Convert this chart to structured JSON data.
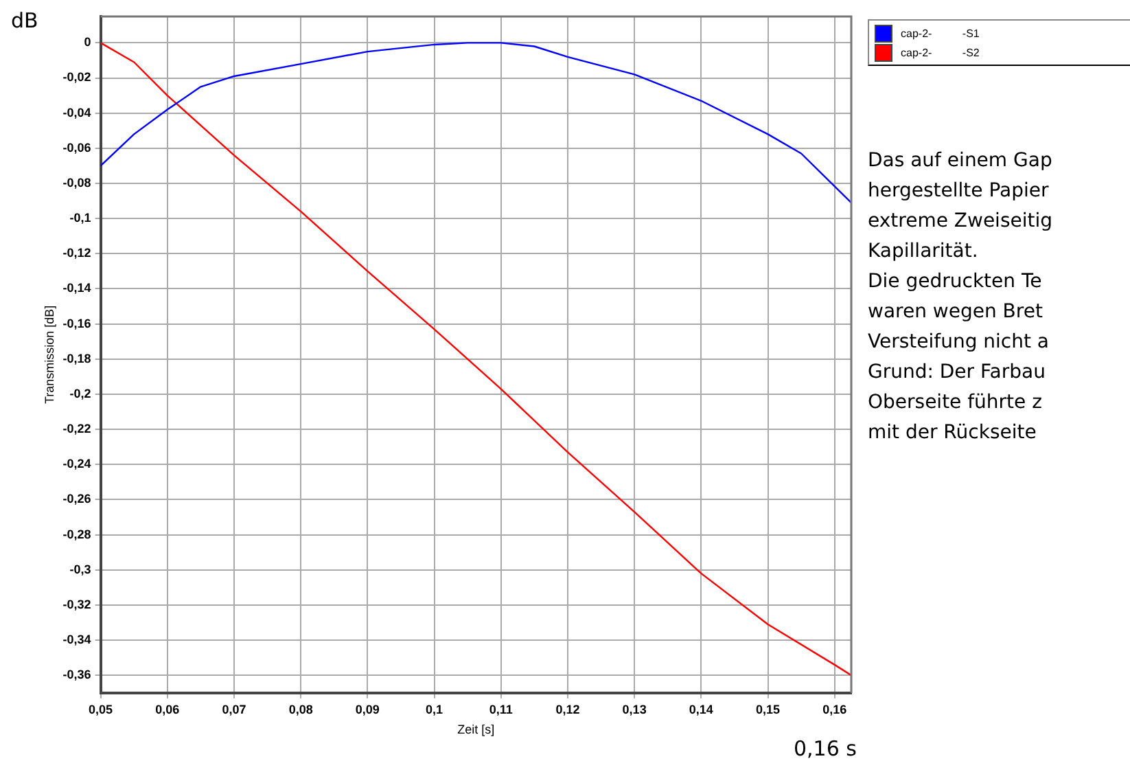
{
  "chart_data": {
    "type": "line",
    "xlabel": "Zeit [s]",
    "ylabel": "Transmission [dB]",
    "xlim": [
      0.05,
      0.1625
    ],
    "ylim": [
      -0.37,
      0.015
    ],
    "xticks": [
      {
        "value": 0.05,
        "label": "0,05"
      },
      {
        "value": 0.06,
        "label": "0,06"
      },
      {
        "value": 0.07,
        "label": "0,07"
      },
      {
        "value": 0.08,
        "label": "0,08"
      },
      {
        "value": 0.09,
        "label": "0,09"
      },
      {
        "value": 0.1,
        "label": "0,1"
      },
      {
        "value": 0.11,
        "label": "0,11"
      },
      {
        "value": 0.12,
        "label": "0,12"
      },
      {
        "value": 0.13,
        "label": "0,13"
      },
      {
        "value": 0.14,
        "label": "0,14"
      },
      {
        "value": 0.15,
        "label": "0,15"
      },
      {
        "value": 0.16,
        "label": "0,16"
      }
    ],
    "yticks": [
      0,
      {
        "value": -0.02,
        "label": "-0,02"
      },
      {
        "value": -0.04,
        "label": "-0,04"
      },
      {
        "value": -0.06,
        "label": "-0,06"
      },
      {
        "value": -0.08,
        "label": "-0,08"
      },
      {
        "value": -0.1,
        "label": "-0,1"
      },
      {
        "value": -0.12,
        "label": "-0,12"
      },
      {
        "value": -0.14,
        "label": "-0,14"
      },
      {
        "value": -0.16,
        "label": "-0,16"
      },
      {
        "value": -0.18,
        "label": "-0,18"
      },
      {
        "value": -0.2,
        "label": "-0,2"
      },
      {
        "value": -0.22,
        "label": "-0,22"
      },
      {
        "value": -0.24,
        "label": "-0,24"
      },
      {
        "value": -0.26,
        "label": "-0,26"
      },
      {
        "value": -0.28,
        "label": "-0,28"
      },
      {
        "value": -0.3,
        "label": "-0,3"
      },
      {
        "value": -0.32,
        "label": "-0,32"
      },
      {
        "value": -0.34,
        "label": "-0,34"
      },
      {
        "value": -0.36,
        "label": "-0,36"
      }
    ],
    "series": [
      {
        "name": "cap-2-          -S1",
        "color": "#0000ff",
        "x": [
          0.05,
          0.055,
          0.06,
          0.065,
          0.07,
          0.08,
          0.09,
          0.1,
          0.105,
          0.11,
          0.115,
          0.12,
          0.13,
          0.14,
          0.15,
          0.155,
          0.1625
        ],
        "values": [
          -0.07,
          -0.052,
          -0.038,
          -0.025,
          -0.019,
          -0.012,
          -0.005,
          -0.001,
          0,
          0,
          -0.002,
          -0.008,
          -0.018,
          -0.033,
          -0.052,
          -0.063,
          -0.091
        ]
      },
      {
        "name": "cap-2-          -S2",
        "color": "#ff0000",
        "x": [
          0.05,
          0.055,
          0.06,
          0.07,
          0.08,
          0.09,
          0.1,
          0.11,
          0.12,
          0.13,
          0.14,
          0.15,
          0.16,
          0.1625
        ],
        "values": [
          0,
          -0.011,
          -0.03,
          -0.064,
          -0.096,
          -0.13,
          -0.163,
          -0.197,
          -0.233,
          -0.267,
          -0.302,
          -0.331,
          -0.354,
          -0.36
        ]
      }
    ],
    "grid": true,
    "line_style": "solid",
    "marker": "none",
    "legend": "top right",
    "annotations": [
      "dB",
      "0,16 s",
      "Das auf einem Gap",
      "hergestellte Papier",
      "extreme Zweiseitig",
      "Kapillarität.",
      "Die gedruckten Te",
      "waren wegen Bret",
      "Versteifung nicht a",
      "Grund: Der Farbau",
      "Oberseite führte z",
      "mit der Rückseite"
    ]
  }
}
